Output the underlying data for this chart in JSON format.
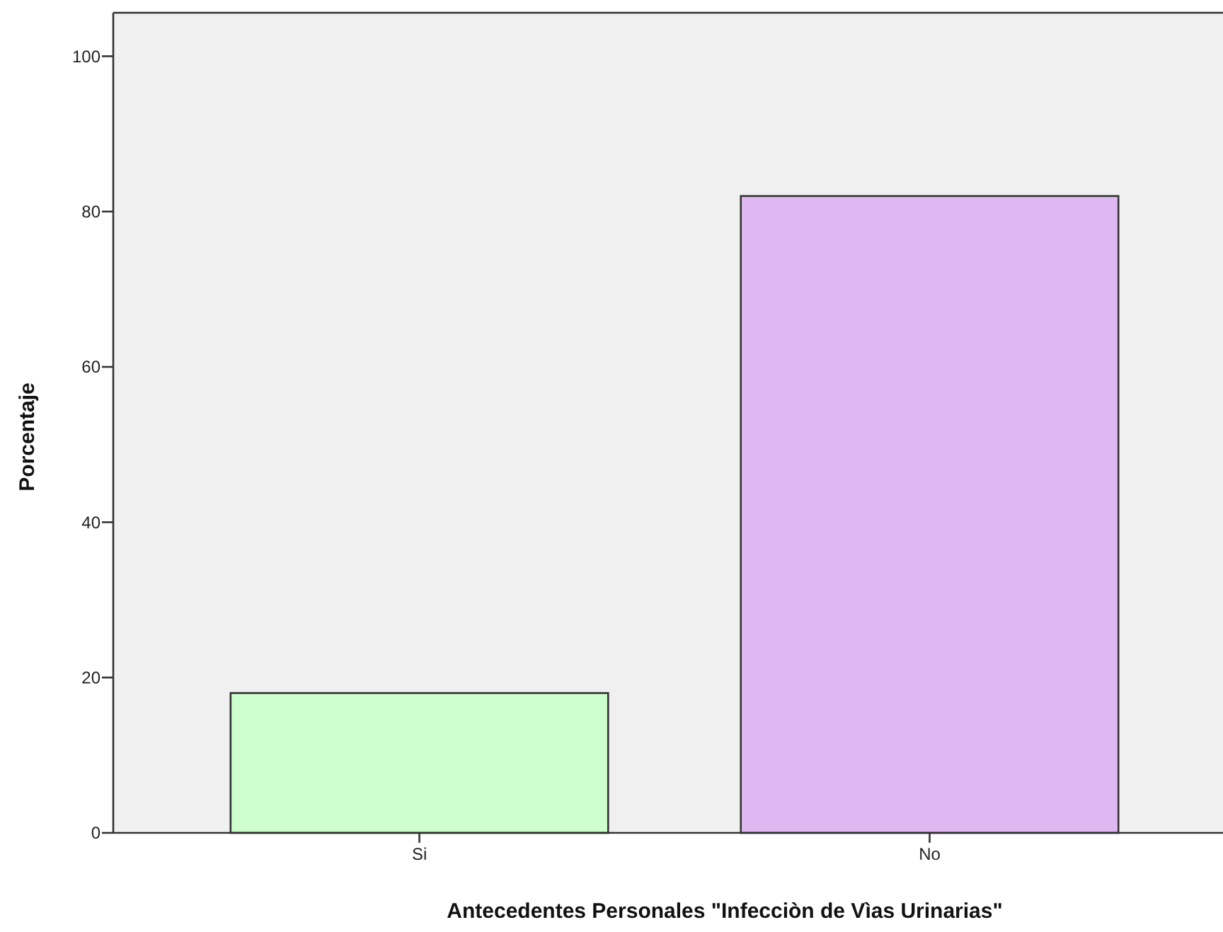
{
  "chart_data": {
    "type": "bar",
    "xlabel": "Antecedentes Personales \"Infecciòn de Vìas Urinarias\"",
    "ylabel": "Porcentaje",
    "categories": [
      "Si",
      "No"
    ],
    "values": [
      18,
      82
    ],
    "colors": [
      "#ccffcc",
      "#dfb8f2"
    ],
    "ylim": [
      0,
      105.6
    ],
    "yticks": [
      0,
      20,
      40,
      60,
      80,
      100
    ],
    "grid": false
  }
}
